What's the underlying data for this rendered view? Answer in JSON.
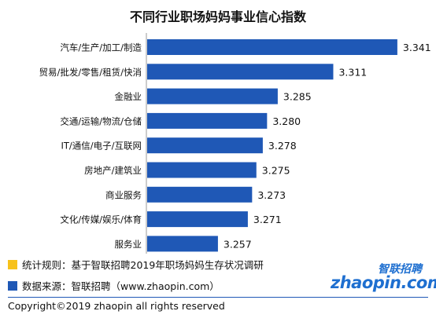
{
  "title": "不同行业职场妈妈事业信心指数",
  "chart_data": {
    "type": "bar",
    "orientation": "horizontal",
    "categories": [
      "汽车/生产/加工/制造",
      "贸易/批发/零售/租赁/快消",
      "金融业",
      "交通/运输/物流/仓储",
      "IT/通信/电子/互联网",
      "房地产/建筑业",
      "商业服务",
      "文化/传媒/娱乐/体育",
      "服务业"
    ],
    "values": [
      3.341,
      3.311,
      3.285,
      3.28,
      3.278,
      3.275,
      3.273,
      3.271,
      3.257
    ],
    "value_labels": [
      "3.341",
      "3.311",
      "3.285",
      "3.280",
      "3.278",
      "3.275",
      "3.273",
      "3.271",
      "3.257"
    ],
    "bar_color": "#1f58b6",
    "grid": false,
    "legend": "none"
  },
  "footnotes": [
    {
      "text": "统计规则：基于智联招聘2019年职场妈妈生存状况调研",
      "color": "#f7c21b"
    },
    {
      "text": "数据来源：智联招聘（www.zhaopin.com）",
      "color": "#1f58b6"
    }
  ],
  "copyright": "Copyright©2019 zhaopin all rights reserved",
  "logo": {
    "cn": "智联招聘",
    "en": "zhaopin.com"
  }
}
